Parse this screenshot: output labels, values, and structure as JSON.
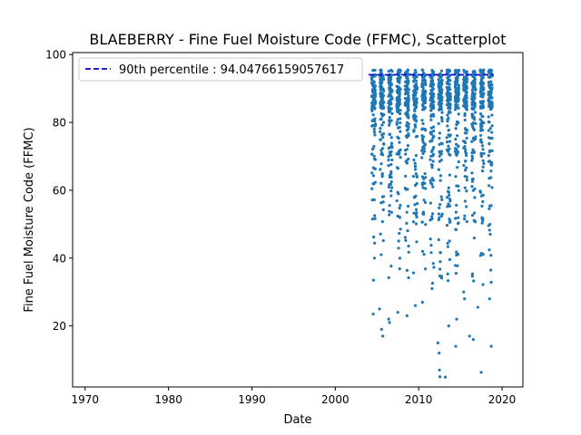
{
  "chart_data": {
    "type": "scatter",
    "title": "BLAEBERRY - Fine Fuel Moisture Code (FFMC), Scatterplot",
    "xlabel": "Date",
    "ylabel": "Fine Fuel Moisture Code (FFMC)",
    "x_ticks": [
      "1970",
      "1980",
      "1990",
      "2000",
      "2010",
      "2020"
    ],
    "y_ticks": [
      "20",
      "40",
      "60",
      "80",
      "100"
    ],
    "xlim": [
      1968.5,
      2022.5
    ],
    "ylim": [
      2.0,
      100.6
    ],
    "grid": false,
    "legend_position": "top-left",
    "series": [
      {
        "kind": "points",
        "color": "#1f77b4",
        "seasons": [
          2004.6,
          2005.6,
          2006.6,
          2007.6,
          2008.6,
          2009.6,
          2010.6,
          2011.6,
          2012.6,
          2013.6,
          2014.6,
          2015.6,
          2016.6,
          2017.6,
          2018.6
        ],
        "season_width": 0.45,
        "seed": 7,
        "points_per_season": 110,
        "low_tail": [
          [
            2004.55,
            23.5
          ],
          [
            2005.3,
            25.0
          ],
          [
            2005.55,
            19.0
          ],
          [
            2005.7,
            17.0
          ],
          [
            2006.4,
            22.0
          ],
          [
            2007.5,
            24.0
          ],
          [
            2008.6,
            23.0
          ],
          [
            2010.45,
            27.0
          ],
          [
            2011.6,
            31.0
          ],
          [
            2012.3,
            15.0
          ],
          [
            2012.45,
            12.0
          ],
          [
            2012.5,
            7.0
          ],
          [
            2012.55,
            5.0
          ],
          [
            2013.2,
            4.9
          ],
          [
            2013.6,
            20.0
          ],
          [
            2014.45,
            14.0
          ],
          [
            2014.55,
            22.0
          ],
          [
            2015.4,
            30.0
          ],
          [
            2016.1,
            17.0
          ],
          [
            2016.55,
            16.0
          ],
          [
            2017.1,
            25.5
          ],
          [
            2017.5,
            6.3
          ],
          [
            2018.7,
            14.0
          ],
          [
            2018.5,
            28.0
          ],
          [
            2006.5,
            21.0
          ],
          [
            2009.6,
            26.0
          ],
          [
            2015.5,
            28.0
          ],
          [
            2004.7,
            40.0
          ],
          [
            2005.5,
            41.0
          ]
        ]
      },
      {
        "name": "90th percentile : 94.04766159057617",
        "kind": "line",
        "color": "#0000cd",
        "x": [
          2004.0,
          2019.0
        ],
        "y": [
          94.04766159057617,
          94.04766159057617
        ]
      }
    ]
  }
}
